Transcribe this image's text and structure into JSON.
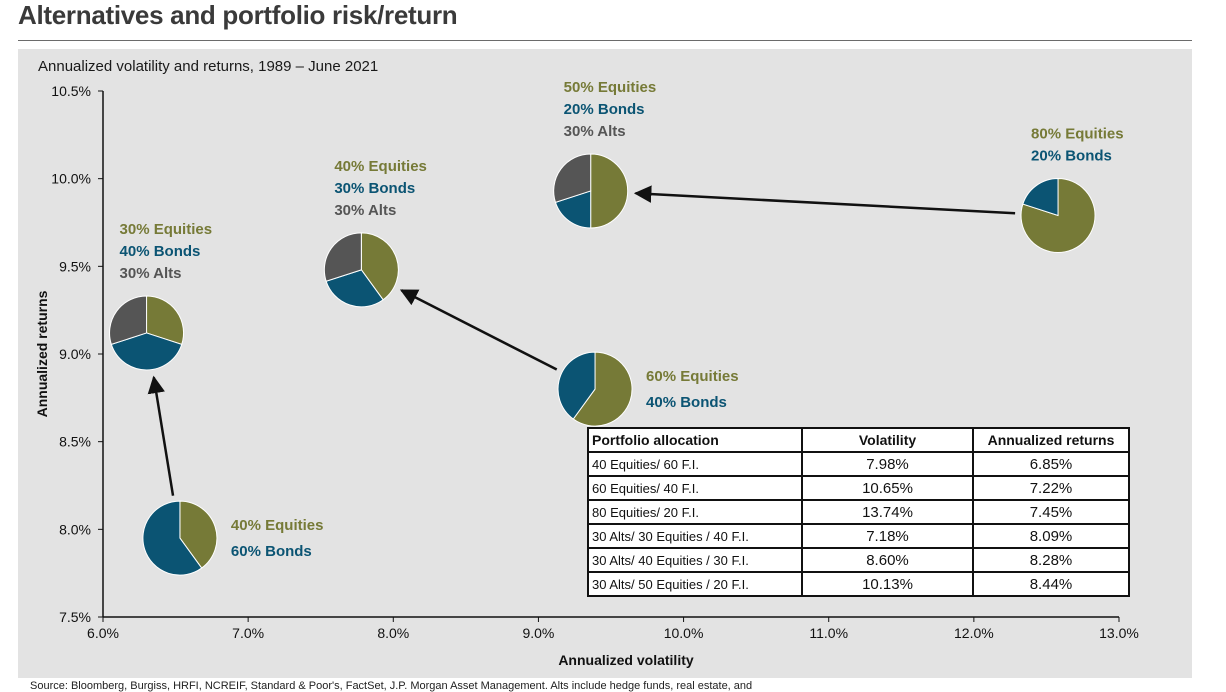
{
  "page": {
    "title": "Alternatives and portfolio risk/return",
    "subtitle": "Annualized volatility and returns, 1989 – June 2021",
    "source": "Source: Bloomberg, Burgiss, HRFI, NCREIF, Standard & Poor's, FactSet, J.P. Morgan Asset Management. Alts include hedge funds, real estate, and"
  },
  "colors": {
    "equities": "#767a37",
    "bonds": "#0b5473",
    "alts": "#555555",
    "panel": "#e3e3e3",
    "arrow": "#111111"
  },
  "chart_data": {
    "type": "scatter",
    "title": "Annualized volatility and returns, 1989 – June 2021",
    "xlabel": "Annualized volatility",
    "ylabel": "Annualized returns",
    "xlim": [
      0.06,
      0.13
    ],
    "ylim": [
      0.075,
      0.105
    ],
    "xticks": [
      0.06,
      0.07,
      0.08,
      0.09,
      0.1,
      0.11,
      0.12,
      0.13
    ],
    "xtick_labels": [
      "6.0%",
      "7.0%",
      "8.0%",
      "9.0%",
      "10.0%",
      "11.0%",
      "12.0%",
      "13.0%"
    ],
    "yticks": [
      0.075,
      0.08,
      0.085,
      0.09,
      0.095,
      0.1,
      0.105
    ],
    "ytick_labels": [
      "7.5%",
      "8.0%",
      "8.5%",
      "9.0%",
      "9.5%",
      "10.0%",
      "10.5%"
    ],
    "grid": false,
    "portfolios": [
      {
        "id": "p40-60",
        "x": 0.0653,
        "y": 0.0795,
        "slices": [
          0.4,
          0.6,
          0.0
        ],
        "labels": [
          "40% Equities",
          "60% Bonds"
        ],
        "label_side": "right"
      },
      {
        "id": "p60-40",
        "x": 0.0939,
        "y": 0.088,
        "slices": [
          0.6,
          0.4,
          0.0
        ],
        "labels": [
          "60% Equities",
          "40% Bonds"
        ],
        "label_side": "right"
      },
      {
        "id": "p80-20",
        "x": 0.1258,
        "y": 0.0979,
        "slices": [
          0.8,
          0.2,
          0.0
        ],
        "labels": [
          "80% Equities",
          "20% Bonds"
        ],
        "label_side": "above"
      },
      {
        "id": "p30-30-40",
        "x": 0.063,
        "y": 0.0912,
        "slices": [
          0.3,
          0.4,
          0.3
        ],
        "labels": [
          "30% Equities",
          "40% Bonds",
          "30% Alts"
        ],
        "label_side": "above"
      },
      {
        "id": "p30-40-30",
        "x": 0.0778,
        "y": 0.0948,
        "slices": [
          0.4,
          0.3,
          0.3
        ],
        "labels": [
          "40% Equities",
          "30% Bonds",
          "30% Alts"
        ],
        "label_side": "above"
      },
      {
        "id": "p30-50-20",
        "x": 0.0936,
        "y": 0.0993,
        "slices": [
          0.5,
          0.2,
          0.3
        ],
        "labels": [
          "50% Equities",
          "20% Bonds",
          "30% Alts"
        ],
        "label_side": "above"
      }
    ],
    "arrows": [
      {
        "from": "p40-60",
        "to": "p30-30-40"
      },
      {
        "from": "p60-40",
        "to": "p30-40-30"
      },
      {
        "from": "p80-20",
        "to": "p30-50-20"
      }
    ],
    "table": {
      "headers": [
        "Portfolio allocation",
        "Volatility",
        "Annualized returns"
      ],
      "rows": [
        [
          "40 Equities/ 60 F.I.",
          "7.98%",
          "6.85%"
        ],
        [
          "60 Equities/ 40 F.I.",
          "10.65%",
          "7.22%"
        ],
        [
          "80 Equities/ 20 F.I.",
          "13.74%",
          "7.45%"
        ],
        [
          "30 Alts/ 30 Equities / 40 F.I.",
          "7.18%",
          "8.09%"
        ],
        [
          "30 Alts/ 40 Equities / 30 F.I.",
          "8.60%",
          "8.28%"
        ],
        [
          "30 Alts/ 50 Equities / 20 F.I.",
          "10.13%",
          "8.44%"
        ]
      ]
    }
  }
}
